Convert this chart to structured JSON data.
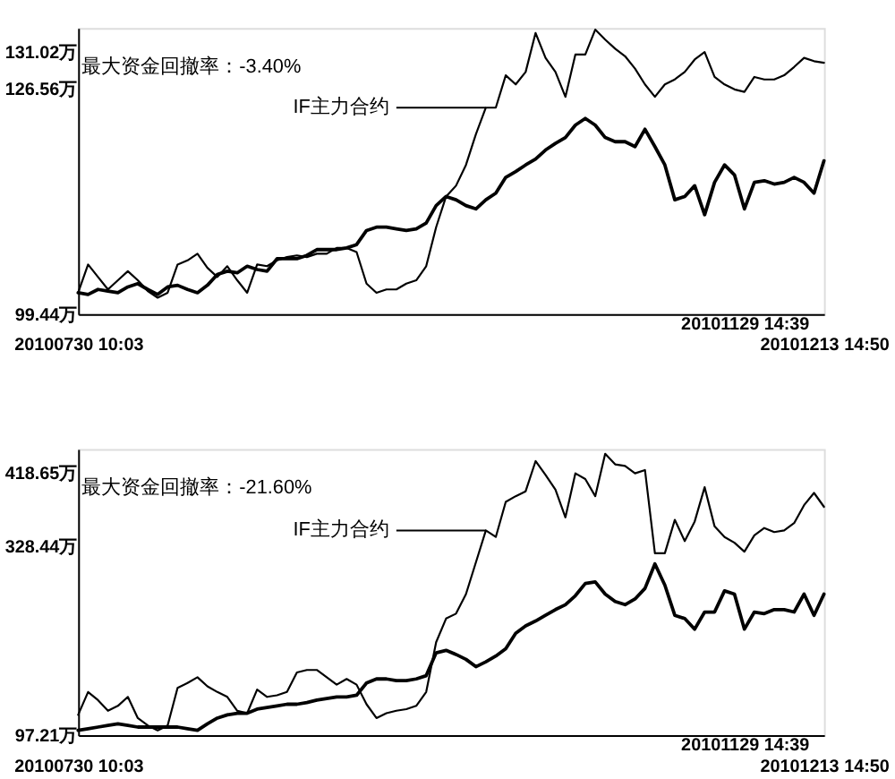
{
  "chart_data": [
    {
      "type": "line",
      "categories": [
        "20100730 10:03",
        null,
        null,
        null,
        null,
        null,
        null,
        null,
        null,
        null,
        null,
        null,
        null,
        null,
        null,
        null,
        null,
        null,
        null,
        null,
        null,
        null,
        null,
        null,
        null,
        null,
        null,
        null,
        null,
        null,
        null,
        null,
        null,
        null,
        null,
        null,
        null,
        null,
        null,
        null,
        null,
        null,
        null,
        null,
        null,
        null,
        null,
        null,
        null,
        null,
        null,
        null,
        null,
        null,
        null,
        null,
        null,
        null,
        null,
        null,
        null,
        null,
        null,
        null,
        null,
        null,
        null,
        "20101129 14:39",
        null,
        null,
        null,
        null,
        null,
        null,
        null,
        "20101213 14:50"
      ],
      "series": [
        {
          "name": "IF主力合约",
          "color": "#000000",
          "values": [
            102.0,
            105.4,
            103.9,
            102.4,
            103.5,
            104.6,
            103.5,
            102.2,
            101.4,
            102.0,
            105.4,
            105.9,
            106.7,
            105.0,
            103.9,
            105.2,
            103.5,
            102.0,
            105.4,
            105.2,
            105.9,
            106.3,
            106.5,
            106.3,
            106.7,
            106.7,
            107.4,
            107.4,
            106.9,
            103.1,
            102.0,
            102.4,
            102.4,
            103.1,
            103.5,
            105.2,
            109.9,
            113.6,
            114.9,
            117.4,
            121.1,
            124.3,
            124.3,
            128.2,
            127.1,
            128.6,
            133.3,
            130.3,
            128.6,
            125.6,
            130.7,
            130.7,
            133.7,
            132.5,
            131.4,
            130.5,
            129.0,
            127.1,
            125.6,
            127.1,
            127.7,
            128.6,
            130.1,
            131.0,
            128.0,
            127.1,
            126.5,
            126.2,
            128.0,
            127.7,
            127.7,
            128.2,
            129.2,
            130.3,
            129.9,
            129.7
          ]
        },
        {
          "color": "#000000",
          "values": [
            102.0,
            101.8,
            102.4,
            102.2,
            102.0,
            102.7,
            103.1,
            102.4,
            101.8,
            102.7,
            102.9,
            102.4,
            102.0,
            102.9,
            104.2,
            104.6,
            104.4,
            105.2,
            104.8,
            104.6,
            106.1,
            106.1,
            106.1,
            106.5,
            107.2,
            107.2,
            107.2,
            107.4,
            107.8,
            109.5,
            109.9,
            109.9,
            109.7,
            109.5,
            109.7,
            110.4,
            112.5,
            113.6,
            113.2,
            112.5,
            112.1,
            113.2,
            114.0,
            115.9,
            116.6,
            117.4,
            118.1,
            119.2,
            120.0,
            120.7,
            122.2,
            123.0,
            122.2,
            120.7,
            120.2,
            120.2,
            119.6,
            121.7,
            119.6,
            117.4,
            113.2,
            113.6,
            114.9,
            111.4,
            115.3,
            117.4,
            116.2,
            112.1,
            115.3,
            115.5,
            115.1,
            115.3,
            115.9,
            115.3,
            114.0,
            117.9
          ]
        }
      ],
      "ylim": [
        99.44,
        133.9
      ],
      "yticks": [
        {
          "value": 99.44,
          "label": "99.44万"
        },
        {
          "value": 126.56,
          "label": "126.56万"
        },
        {
          "value": 131.02,
          "label": "131.02万"
        }
      ],
      "annotations": [
        "最大资金回撤率：-3.40%"
      ]
    },
    {
      "type": "line",
      "categories": [
        "20100730 10:03",
        null,
        null,
        null,
        null,
        null,
        null,
        null,
        null,
        null,
        null,
        null,
        null,
        null,
        null,
        null,
        null,
        null,
        null,
        null,
        null,
        null,
        null,
        null,
        null,
        null,
        null,
        null,
        null,
        null,
        null,
        null,
        null,
        null,
        null,
        null,
        null,
        null,
        null,
        null,
        null,
        null,
        null,
        null,
        null,
        null,
        null,
        null,
        null,
        null,
        null,
        null,
        null,
        null,
        null,
        null,
        null,
        null,
        null,
        null,
        null,
        null,
        null,
        null,
        null,
        null,
        null,
        "20101129 14:39",
        null,
        null,
        null,
        null,
        null,
        null,
        null,
        "20101213 14:50"
      ],
      "series": [
        {
          "name": "IF主力合约",
          "color": "#000000",
          "values": [
            122,
            150,
            140,
            127,
            133,
            144,
            118,
            109,
            103,
            109,
            155,
            161,
            168,
            157,
            150,
            144,
            127,
            124,
            153,
            144,
            146,
            150,
            174,
            177,
            177,
            168,
            159,
            166,
            159,
            135,
            118,
            124,
            127,
            129,
            133,
            150,
            211,
            240,
            246,
            270,
            309,
            348,
            340,
            383,
            390,
            396,
            433,
            416,
            398,
            364,
            418,
            411,
            390,
            442,
            429,
            427,
            418,
            422,
            320,
            320,
            361,
            335,
            359,
            401,
            353,
            340,
            333,
            322,
            342,
            351,
            346,
            348,
            357,
            379,
            394,
            377
          ]
        },
        {
          "color": "#000000",
          "values": [
            103,
            105,
            107,
            109,
            111,
            109,
            107,
            107,
            107,
            107,
            107,
            105,
            103,
            111,
            118,
            122,
            124,
            124,
            129,
            131,
            133,
            135,
            135,
            137,
            140,
            142,
            144,
            144,
            146,
            161,
            166,
            166,
            164,
            164,
            166,
            170,
            198,
            201,
            196,
            190,
            181,
            187,
            194,
            203,
            222,
            231,
            237,
            244,
            251,
            257,
            268,
            283,
            285,
            270,
            261,
            257,
            264,
            277,
            307,
            281,
            244,
            240,
            227,
            248,
            248,
            274,
            270,
            227,
            248,
            246,
            251,
            251,
            248,
            270,
            244,
            270
          ]
        }
      ],
      "ylim": [
        97.21,
        447.8
      ],
      "yticks": [
        {
          "value": 97.21,
          "label": "97.21万"
        },
        {
          "value": 328.44,
          "label": "328.44万"
        },
        {
          "value": 418.65,
          "label": "418.65万"
        }
      ],
      "annotations": [
        "最大资金回撤率：-21.60%"
      ]
    }
  ]
}
